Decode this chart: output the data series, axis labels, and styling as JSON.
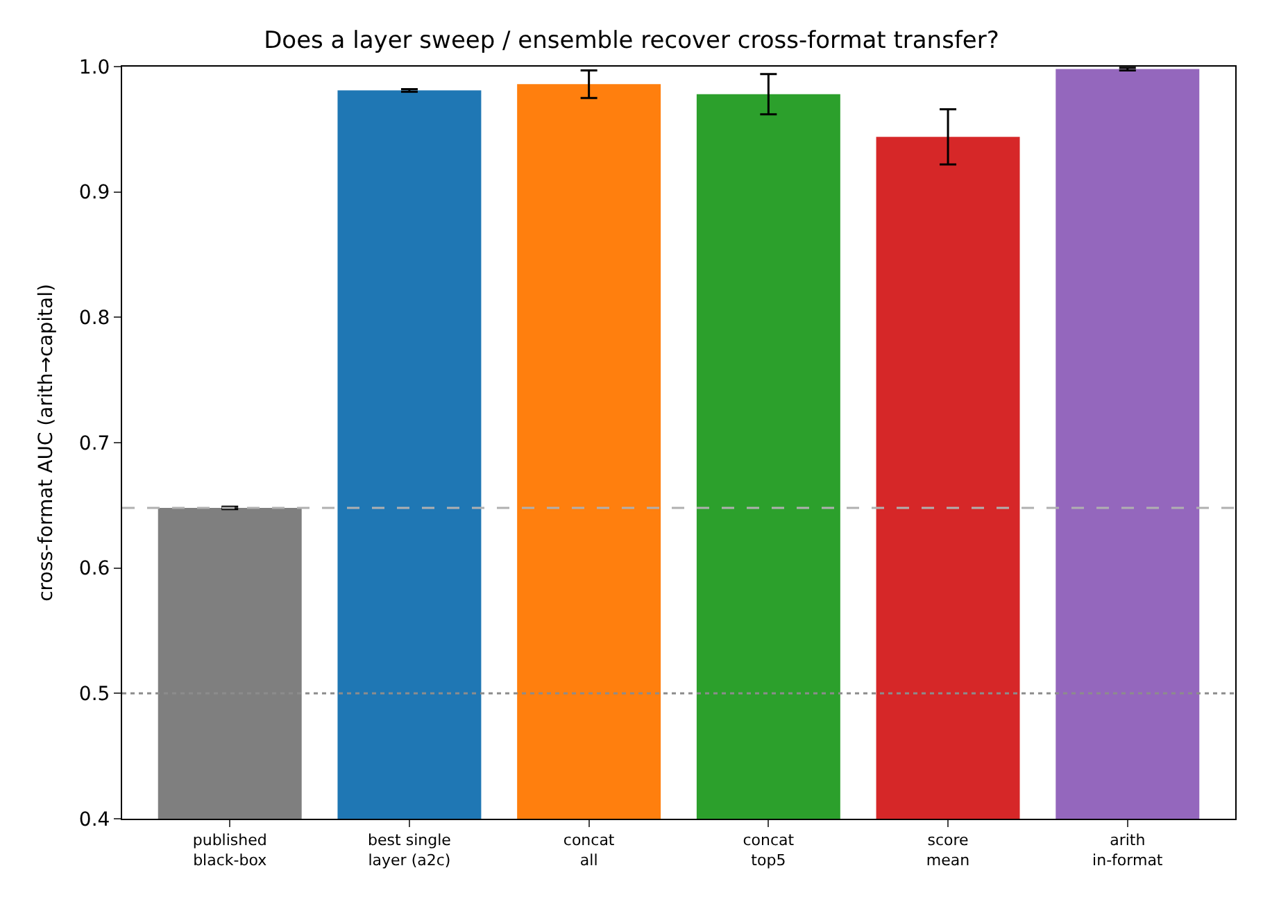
{
  "chart_data": {
    "type": "bar",
    "title": "Does a layer sweep / ensemble recover cross-format transfer?",
    "ylabel": "cross-format AUC (arith→capital)",
    "categories": [
      "published\nblack-box",
      "best single\nlayer (a2c)",
      "concat\nall",
      "concat\ntop5",
      "score\nmean",
      "arith\nin-format"
    ],
    "values": [
      0.648,
      0.981,
      0.986,
      0.978,
      0.944,
      0.998
    ],
    "errors": [
      0.001,
      0.001,
      0.011,
      0.016,
      0.022,
      0.001
    ],
    "colors": [
      "#7f7f7f",
      "#1f77b4",
      "#ff7f0e",
      "#2ca02c",
      "#d62728",
      "#9467bd"
    ],
    "ylim": [
      0.4,
      1.0
    ],
    "yticks": [
      0.4,
      0.5,
      0.6,
      0.7,
      0.8,
      0.9,
      {
        "value": 1,
        "label": "1.0"
      }
    ],
    "ref_lines": [
      {
        "axis": "y",
        "value": 0.648,
        "color": "#b0b0b0",
        "line_style": "dashed"
      },
      {
        "axis": "y",
        "value": 0.5,
        "color": "#8c8c8c",
        "line_style": "dotted"
      }
    ],
    "legend": false
  }
}
